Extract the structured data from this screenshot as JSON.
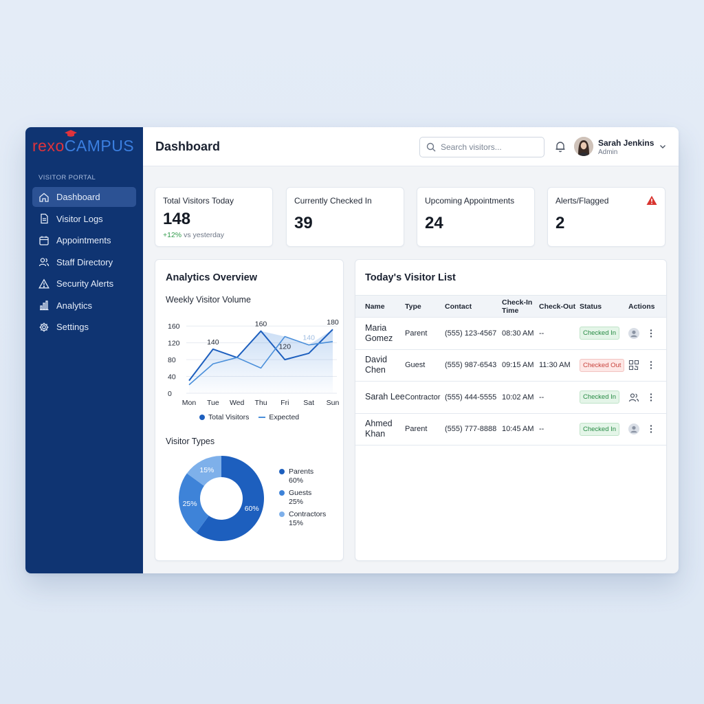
{
  "brand": {
    "part1": "rexo",
    "part2": "CAMPUS"
  },
  "sidebar": {
    "section_label": "VISITOR PORTAL",
    "items": [
      {
        "label": "Dashboard",
        "icon": "home-icon",
        "active": true
      },
      {
        "label": "Visitor Logs",
        "icon": "document-icon"
      },
      {
        "label": "Appointments",
        "icon": "calendar-icon"
      },
      {
        "label": "Staff Directory",
        "icon": "people-icon"
      },
      {
        "label": "Security Alerts",
        "icon": "warning-icon"
      },
      {
        "label": "Analytics",
        "icon": "bar-chart-icon"
      },
      {
        "label": "Settings",
        "icon": "gear-icon"
      }
    ]
  },
  "header": {
    "title": "Dashboard",
    "search_placeholder": "Search visitors...",
    "user": {
      "name": "Sarah Jenkins",
      "role": "Admin"
    }
  },
  "stats": [
    {
      "label": "Total Visitors Today",
      "value": "148",
      "delta_pos": "+12%",
      "delta_rest": " vs yesterday"
    },
    {
      "label": "Currently Checked In",
      "value": "39"
    },
    {
      "label": "Upcoming Appointments",
      "value": "24"
    },
    {
      "label": "Alerts/Flagged",
      "value": "2"
    }
  ],
  "analytics": {
    "title": "Analytics Overview",
    "weekly_title": "Weekly Visitor Volume",
    "visitor_types_title": "Visitor Types",
    "legend_total": "Total Visitors",
    "legend_expected": "Expected"
  },
  "chart_data": [
    {
      "type": "line",
      "title": "Weekly Visitor Volume",
      "x": [
        "Mon",
        "Tue",
        "Wed",
        "Thu",
        "Fri",
        "Sat",
        "Sun"
      ],
      "yticks": [
        0,
        40,
        80,
        120,
        160
      ],
      "ylim": [
        0,
        180
      ],
      "series": [
        {
          "name": "Total Visitors",
          "values": [
            30,
            105,
            85,
            148,
            80,
            95,
            152
          ],
          "color": "#1d5fbe"
        },
        {
          "name": "Expected",
          "values": [
            20,
            70,
            85,
            60,
            135,
            115,
            123
          ],
          "color": "#4a8fda"
        }
      ],
      "annotations": [
        {
          "x": "Tue",
          "label": "140"
        },
        {
          "x": "Thu",
          "label": "160"
        },
        {
          "x": "Fri",
          "label": "120"
        },
        {
          "x": "Sat",
          "label": "140"
        },
        {
          "x": "Sun",
          "label": "180"
        }
      ],
      "legend": "bottom"
    },
    {
      "type": "pie",
      "title": "Visitor Types",
      "categories": [
        "Parents",
        "Guests",
        "Contractors"
      ],
      "values": [
        60,
        25,
        15
      ],
      "labels": [
        "60%",
        "25%",
        "15%"
      ],
      "colors": [
        "#1d5fbe",
        "#3e83d8",
        "#7eb0ea"
      ],
      "legend": "right"
    }
  ],
  "visitor_list": {
    "title": "Today's Visitor List",
    "columns": [
      "Name",
      "Type",
      "Contact",
      "Check-In Time",
      "Check-Out",
      "Status",
      "Actions"
    ],
    "rows": [
      {
        "name": "Maria Gomez",
        "type": "Parent",
        "contact": "(555) 123-4567",
        "check_in": "08:30 AM",
        "check_out": "--",
        "status": "Checked In",
        "action_icon": "avatar-icon"
      },
      {
        "name": "David Chen",
        "type": "Guest",
        "contact": "(555) 987-6543",
        "check_in": "09:15 AM",
        "check_out": "11:30 AM",
        "status": "Checked Out",
        "action_icon": "qr-code-icon"
      },
      {
        "name": "Sarah Lee",
        "type": "Contractor",
        "contact": "(555) 444-5555",
        "check_in": "10:02 AM",
        "check_out": "--",
        "status": "Checked In",
        "action_icon": "people-icon"
      },
      {
        "name": "Ahmed Khan",
        "type": "Parent",
        "contact": "(555) 777-8888",
        "check_in": "10:45 AM",
        "check_out": "--",
        "status": "Checked In",
        "action_icon": "avatar-icon"
      }
    ]
  }
}
